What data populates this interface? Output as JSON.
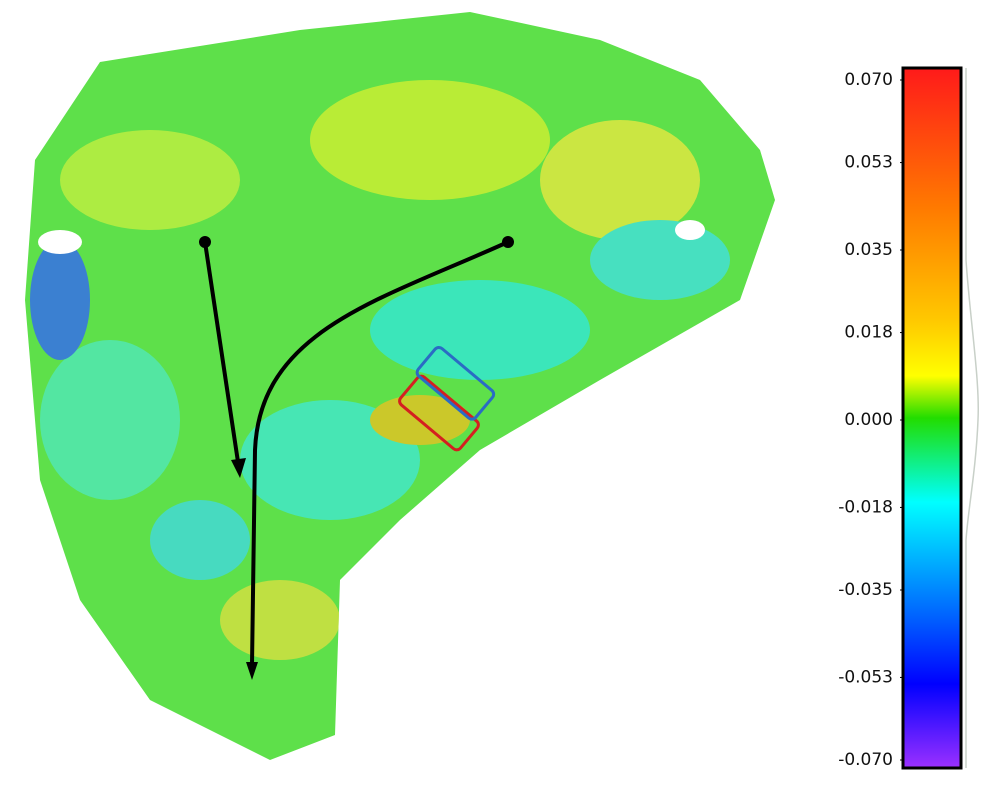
{
  "chart_data": {
    "type": "colorbar",
    "ylim": [
      -0.07,
      0.07
    ],
    "yticks": [
      {
        "value": 0.07,
        "label": "0.070"
      },
      {
        "value": 0.053,
        "label": "0.053"
      },
      {
        "value": 0.035,
        "label": "0.035"
      },
      {
        "value": 0.018,
        "label": "0.018"
      },
      {
        "value": 0,
        "label": "0.000"
      },
      {
        "value": -0.018,
        "label": "-0.018"
      },
      {
        "value": -0.035,
        "label": "-0.035"
      },
      {
        "value": -0.053,
        "label": "-0.053"
      },
      {
        "value": -0.07,
        "label": "-0.070"
      }
    ]
  }
}
